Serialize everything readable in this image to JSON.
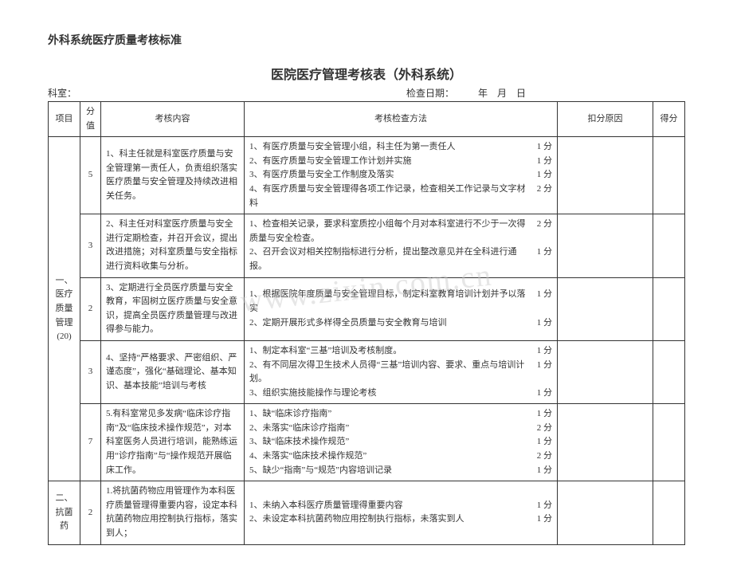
{
  "doc_title": "外科系统医疗质量考核标准",
  "table_title": "医院医疗管理考核表（外科系统）",
  "meta": {
    "dept_label": "科室：",
    "date_label": "检查日期：　　　年　月　日"
  },
  "headers": {
    "project": "项目",
    "score": "分值",
    "content": "考核内容",
    "method": "考核检查方法",
    "reason": "扣分原因",
    "got": "得分"
  },
  "watermark": "www.zixin.com.cn",
  "sections": [
    {
      "project": "一、医疗质量管理 (20)",
      "rows": [
        {
          "score": "5",
          "content": "1、科主任就是科室医疗质量与安全管理第一责任人，负责组织落实医疗质量与安全管理及持续改进相关任务。",
          "methods": [
            {
              "t": "1、有医疗质量与安全管理小组，科主任为第一责任人",
              "p": "1 分"
            },
            {
              "t": "2、有医疗质量与安全管理工作计划并实施",
              "p": "1 分"
            },
            {
              "t": "3、有医疗质量与安全工作制度及落实",
              "p": "1 分"
            },
            {
              "t": "4、有医疗质量与安全管理得各项工作记录，检查相关工作记录与文字材料",
              "p": "2 分"
            }
          ]
        },
        {
          "score": "3",
          "content": "2、科主任对科室医疗质量与安全进行定期检查，并召开会议，提出改进措施；对科室质量与安全指标进行资料收集与分析。",
          "methods": [
            {
              "t": "1、检查相关记录，要求科室质控小组每个月对本科室进行不少于一次得质量与安全检查。",
              "p": "2 分"
            },
            {
              "t": "2、召开会议对相关控制指标进行分析，提出整改意见并在全科进行通报。",
              "p": "1 分"
            }
          ]
        },
        {
          "score": "2",
          "content": "3、定期进行全员医疗质量与安全教育，牢固树立医疗质量与安全意识，提高全员医疗质量管理与改进得参与能力。",
          "methods": [
            {
              "t": "1、根据医院年度质量与安全管理目标，制定科室教育培训计划并予以落实",
              "p": "1 分"
            },
            {
              "t": "2、定期开展形式多样得全员质量与安全教育与培训",
              "p": "1 分"
            }
          ]
        },
        {
          "score": "3",
          "content": "4、坚持“严格要求、严密组织、严谨态度”，强化“基础理论、基本知识、基本技能”培训与考核",
          "methods": [
            {
              "t": "1、制定本科室“三基”培训及考核制度。",
              "p": "1 分"
            },
            {
              "t": "2、有不同层次得卫生技术人员得“三基”培训内容、要求、重点与培训计划。",
              "p": "1 分"
            },
            {
              "t": "3、组织实施技能操作与理论考核",
              "p": "1 分"
            }
          ]
        },
        {
          "score": "7",
          "content": "5.有科室常见多发病“临床诊疗指南”及“临床技术操作规范”，对本科室医务人员进行培训，能熟练运用“诊疗指南”与“操作规范开展临床工作。",
          "methods": [
            {
              "t": "1、缺“临床诊疗指南”",
              "p": "1 分"
            },
            {
              "t": "2、未落实“临床诊疗指南”",
              "p": "2 分"
            },
            {
              "t": "3、缺“临床技术操作规范”",
              "p": "1 分"
            },
            {
              "t": "4、未落实“临床技术操作规范”",
              "p": "2 分"
            },
            {
              "t": "5、缺少“指南”与“规范”内容培训记录",
              "p": "1 分"
            }
          ]
        }
      ]
    },
    {
      "project": "二、抗菌药",
      "rows": [
        {
          "score": "2",
          "content": "1.将抗菌药物应用管理作为本科医疗质量管理得重要内容，设定本科抗菌药物应用控制执行指标，落实到人；",
          "methods": [
            {
              "t": "1、未纳入本科医疗质量管理得重要内容",
              "p": "1 分"
            },
            {
              "t": "2、未设定本科抗菌药物应用控制执行指标，未落实到人",
              "p": "1 分"
            }
          ]
        }
      ]
    }
  ]
}
